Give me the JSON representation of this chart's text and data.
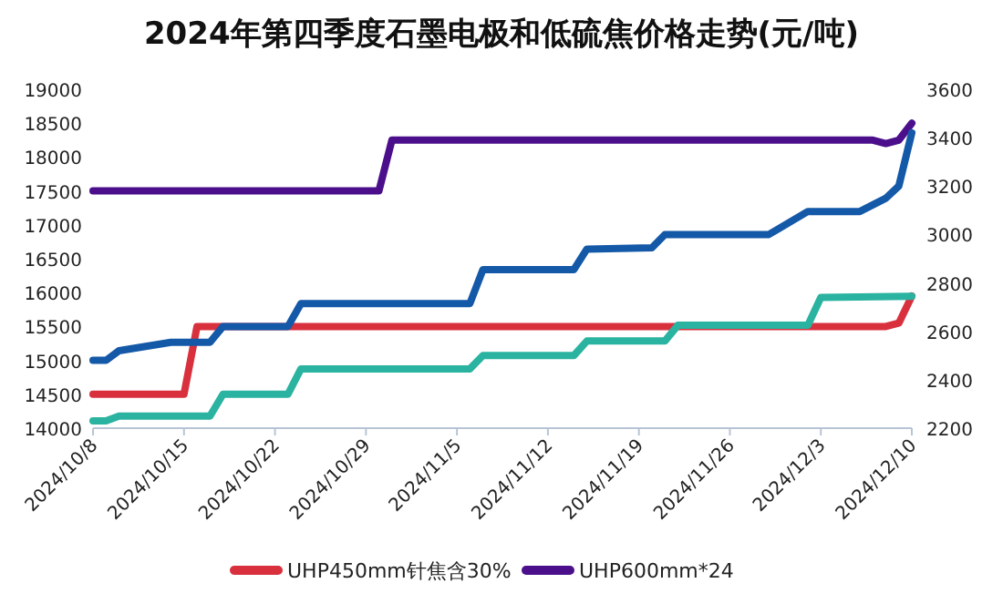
{
  "chart_data": {
    "type": "line",
    "title": "2024年第四季度石墨电极和低硫焦价格走势(元/吨)",
    "xlim": [
      "2024-10-08",
      "2024-12-10"
    ],
    "xticks": [
      {
        "value": "2024-10-08",
        "label": "2024/10/8"
      },
      {
        "value": "2024-10-15",
        "label": "2024/10/15"
      },
      {
        "value": "2024-10-22",
        "label": "2024/10/22"
      },
      {
        "value": "2024-10-29",
        "label": "2024/10/29"
      },
      {
        "value": "2024-11-05",
        "label": "2024/11/5"
      },
      {
        "value": "2024-11-12",
        "label": "2024/11/12"
      },
      {
        "value": "2024-11-19",
        "label": "2024/11/19"
      },
      {
        "value": "2024-11-26",
        "label": "2024/11/26"
      },
      {
        "value": "2024-12-03",
        "label": "2024/12/3"
      },
      {
        "value": "2024-12-10",
        "label": "2024/12/10"
      }
    ],
    "ylim": [
      14000,
      19000
    ],
    "yticks": [
      14000,
      14500,
      15000,
      15500,
      16000,
      16500,
      17000,
      17500,
      18000,
      18500,
      19000
    ],
    "y2lim": [
      2200,
      3600
    ],
    "y2ticks": [
      2200,
      2400,
      2600,
      2800,
      3000,
      3200,
      3400,
      3600
    ],
    "grid": false,
    "legend": "bottom",
    "marker": "none",
    "line_style": "solid",
    "series": [
      {
        "name": "UHP450mm针焦含30%",
        "color": "#d9303e",
        "x": [
          "2024-10-08",
          "2024-10-15",
          "2024-10-16",
          "2024-12-08",
          "2024-12-09",
          "2024-12-10"
        ],
        "values": [
          14500,
          14500,
          15500,
          15500,
          15550,
          15950
        ]
      },
      {
        "name": "UHP600mm*24",
        "color": "#4b0f8c",
        "x": [
          "2024-10-08",
          "2024-10-30",
          "2024-10-31",
          "2024-12-07",
          "2024-12-08",
          "2024-12-09",
          "2024-12-10"
        ],
        "values": [
          17500,
          17500,
          18250,
          18250,
          18200,
          18250,
          18500
        ]
      },
      {
        "color": "#1458a8",
        "axis": "y2",
        "x": [
          "2024-10-08",
          "2024-10-09",
          "2024-10-10",
          "2024-10-14",
          "2024-10-17",
          "2024-10-18",
          "2024-10-23",
          "2024-10-24",
          "2024-11-06",
          "2024-11-07",
          "2024-11-14",
          "2024-11-15",
          "2024-11-20",
          "2024-11-21",
          "2024-11-29",
          "2024-12-02",
          "2024-12-06",
          "2024-12-08",
          "2024-12-09",
          "2024-12-10"
        ],
        "values": [
          2480,
          2480,
          2520,
          2555,
          2555,
          2620,
          2620,
          2715,
          2715,
          2855,
          2855,
          2940,
          2945,
          3000,
          3000,
          3095,
          3095,
          3150,
          3200,
          3420
        ]
      },
      {
        "color": "#2ab3a0",
        "axis": "y2",
        "x": [
          "2024-10-08",
          "2024-10-09",
          "2024-10-10",
          "2024-10-17",
          "2024-10-18",
          "2024-10-23",
          "2024-10-24",
          "2024-11-06",
          "2024-11-07",
          "2024-11-14",
          "2024-11-15",
          "2024-11-21",
          "2024-11-22",
          "2024-12-02",
          "2024-12-03",
          "2024-12-10"
        ],
        "values": [
          2230,
          2230,
          2250,
          2250,
          2340,
          2340,
          2445,
          2445,
          2500,
          2500,
          2560,
          2560,
          2625,
          2625,
          2740,
          2745
        ]
      }
    ]
  }
}
